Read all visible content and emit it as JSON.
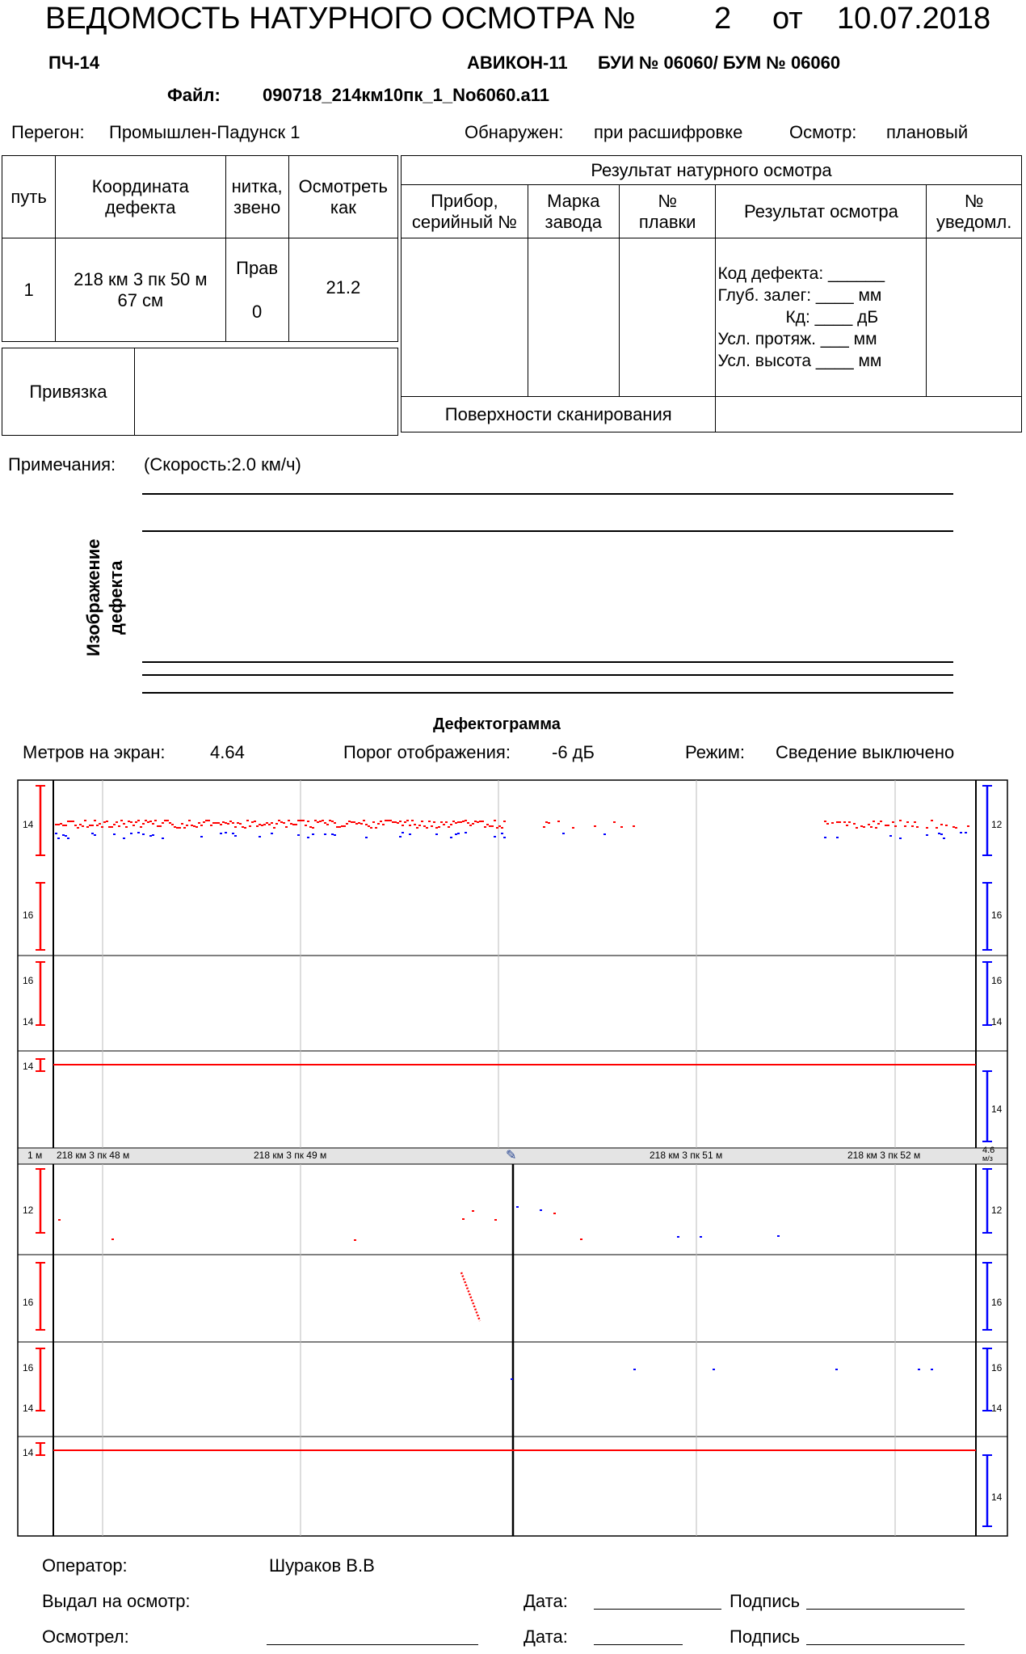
{
  "header": {
    "title": "ВЕДОМОСТЬ НАТУРНОГО ОСМОТРА №",
    "number": "2",
    "date_prefix": "от",
    "date": "10.07.2018",
    "unit": "ПЧ-14",
    "device": "АВИКОН-11",
    "bui_bum": "БУИ № 06060/ БУМ № 06060",
    "file_label": "Файл:",
    "file_name": "090718_214км10пк_1_No6060.a11"
  },
  "info": {
    "peregon_label": "Перегон:",
    "peregon_value": "Промышлен-Падунск 1",
    "detected_label": "Обнаружен:",
    "detected_value": "при расшифровке",
    "inspection_label": "Осмотр:",
    "inspection_value": "плановый"
  },
  "left_table": {
    "col_path": "путь",
    "col_coord": "Координата дефекта",
    "col_rail": "нитка, звено",
    "col_inspect": "Осмотреть как",
    "path": "1",
    "coord": "218 км 3 пк 50 м 67 см",
    "rail": "Прав",
    "link": "0",
    "inspect_as": "21.2",
    "binding": "Привязка"
  },
  "right_table": {
    "title": "Результат натурного осмотра",
    "col_device": "Прибор, серийный №",
    "col_factory": "Марка завода",
    "col_melt": "№ плавки",
    "col_result": "Результат осмотра",
    "col_notice": "№ уведомл.",
    "defect_code": "Код дефекта: ______",
    "depth": "Глуб. залег: ____ мм",
    "kd": "Кд: ____ дБ",
    "length": "Усл. протяж. ___ мм",
    "height": "Усл. высота ____ мм",
    "surfaces": "Поверхности сканирования"
  },
  "notes": {
    "label": "Примечания:",
    "speed": "(Скорость:2.0 км/ч)",
    "image_label_1": "Изображение",
    "image_label_2": "дефекта"
  },
  "defectogram": {
    "title": "Дефектограмма",
    "meters_label": "Метров на экран:",
    "meters_value": "4.64",
    "threshold_label": "Порог отображения:",
    "threshold_value": "-6 дБ",
    "mode_label": "Режим:",
    "mode_value": "Сведение выключено",
    "scale_label": "1 м",
    "speed_label_1": "4.6",
    "speed_label_2": "м/з",
    "km_48": "218 км 3 пк 48 м",
    "km_49": "218 км 3 пк 49 м",
    "km_51": "218 км 3 пк 51 м",
    "km_52": "218 км 3 пк 52 м",
    "top_left_ticks": [
      "14",
      "16",
      "16",
      "14",
      "14"
    ],
    "top_right_ticks": [
      "12",
      "16",
      "16",
      "14",
      "14"
    ],
    "bottom_left_ticks": [
      "12",
      "16",
      "16",
      "14",
      "14"
    ],
    "bottom_right_ticks": [
      "12",
      "16",
      "16",
      "14",
      "14"
    ],
    "colors": {
      "red": "#ff0000",
      "blue": "#0000ff"
    }
  },
  "footer": {
    "operator_label": "Оператор:",
    "operator_value": "Шураков В.В",
    "issued_label": "Выдал на осмотр:",
    "inspected_label": "Осмотрел:",
    "date_label": "Дата:",
    "sign_label": "Подпись"
  }
}
